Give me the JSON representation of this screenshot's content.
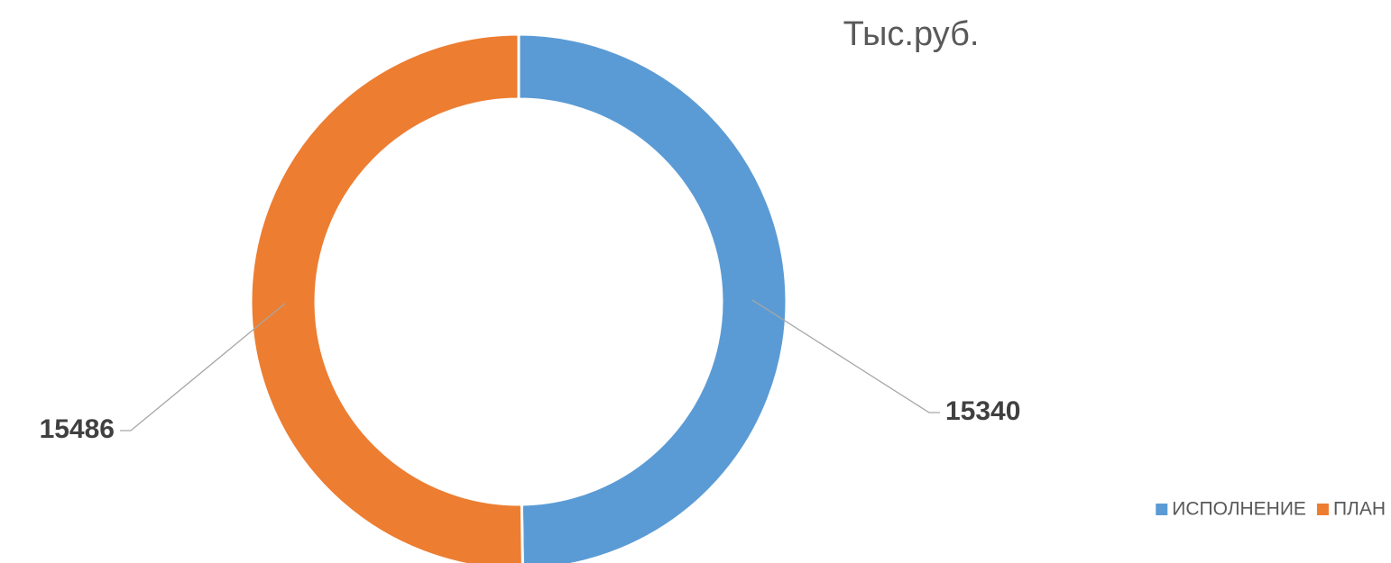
{
  "chart_data": {
    "type": "donut",
    "title": "Тыс.руб.",
    "categories": [
      "ИСПОЛНЕНИЕ",
      "ПЛАН"
    ],
    "values": [
      15340,
      15486
    ],
    "colors": [
      "#5b9bd5",
      "#ed7d31"
    ],
    "legend": "bottom-right"
  }
}
